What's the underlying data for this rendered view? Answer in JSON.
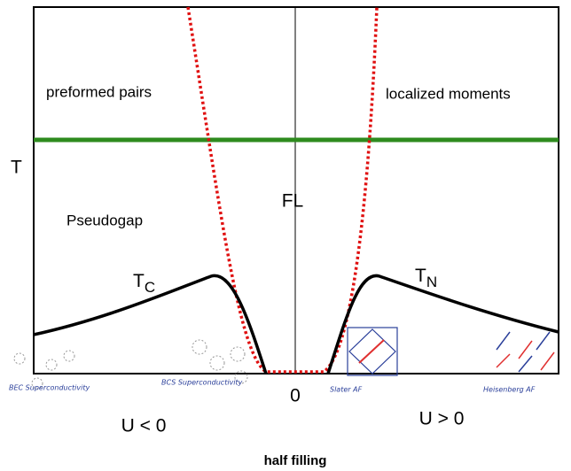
{
  "axis": {
    "y_label": "T",
    "origin": "0",
    "left": "U < 0",
    "right": "U > 0",
    "bottom": "half filling"
  },
  "regions": {
    "upper_left": "preformed pairs",
    "upper_right": "localized moments",
    "center": "FL",
    "pseudogap": "Pseudogap"
  },
  "curves": {
    "tc": {
      "main": "T",
      "sub": "C"
    },
    "tn": {
      "main": "T",
      "sub": "N"
    }
  },
  "notes": {
    "bec": "BEC Superconductivity",
    "bcs": "BCS Superconductivity",
    "slater": "Slater AF",
    "heisenberg": "Heisenberg AF"
  }
}
